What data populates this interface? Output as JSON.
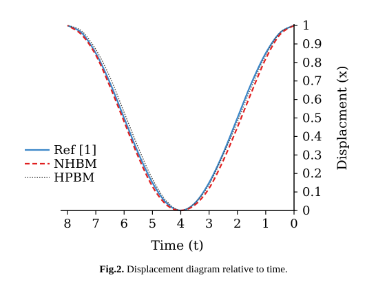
{
  "caption": {
    "label": "Fig.2.",
    "text": " Displacement diagram relative to time."
  },
  "chart_data": {
    "type": "line",
    "title": "",
    "xlabel": "Time (t)",
    "ylabel": "Displacment (x)",
    "xlim": [
      0,
      8
    ],
    "ylim": [
      0,
      1
    ],
    "x_reversed": true,
    "x_ticks": [
      8,
      7,
      6,
      5,
      4,
      3,
      2,
      1,
      0
    ],
    "y_ticks": [
      "0",
      "0.1",
      "0.2",
      "0.3",
      "0.4",
      "0.5",
      "0.6",
      "0.7",
      "0.8",
      "0.9",
      "1"
    ],
    "grid": false,
    "legend_position": "left-middle",
    "series": [
      {
        "name": "Ref [1]",
        "color": "#3a86c8",
        "dash": "solid",
        "x": [
          0,
          0.5,
          1,
          1.5,
          2,
          2.5,
          3,
          3.5,
          4,
          4.5,
          5,
          5.5,
          6,
          6.5,
          7,
          7.5,
          8
        ],
        "y": [
          1,
          0.96,
          0.85,
          0.69,
          0.5,
          0.31,
          0.15,
          0.04,
          0,
          0.04,
          0.15,
          0.31,
          0.5,
          0.69,
          0.85,
          0.96,
          1
        ]
      },
      {
        "name": "NHBM",
        "color": "#e02020",
        "dash": "dashed",
        "x": [
          0,
          0.5,
          1,
          1.5,
          2,
          2.5,
          3,
          3.5,
          4,
          4.5,
          5,
          5.5,
          6,
          6.5,
          7,
          7.5,
          8
        ],
        "y": [
          1,
          0.95,
          0.82,
          0.64,
          0.45,
          0.27,
          0.12,
          0.03,
          0,
          0.03,
          0.13,
          0.29,
          0.48,
          0.67,
          0.84,
          0.95,
          1
        ]
      },
      {
        "name": "HPBM",
        "color": "#444444",
        "dash": "dotted",
        "x": [
          0,
          0.5,
          1,
          1.5,
          2,
          2.5,
          3,
          3.5,
          4,
          4.5,
          5,
          5.5,
          6,
          6.5,
          7,
          7.5,
          8
        ],
        "y": [
          1,
          0.96,
          0.84,
          0.67,
          0.48,
          0.3,
          0.14,
          0.04,
          0,
          0.05,
          0.17,
          0.34,
          0.53,
          0.72,
          0.87,
          0.97,
          1
        ]
      }
    ]
  }
}
